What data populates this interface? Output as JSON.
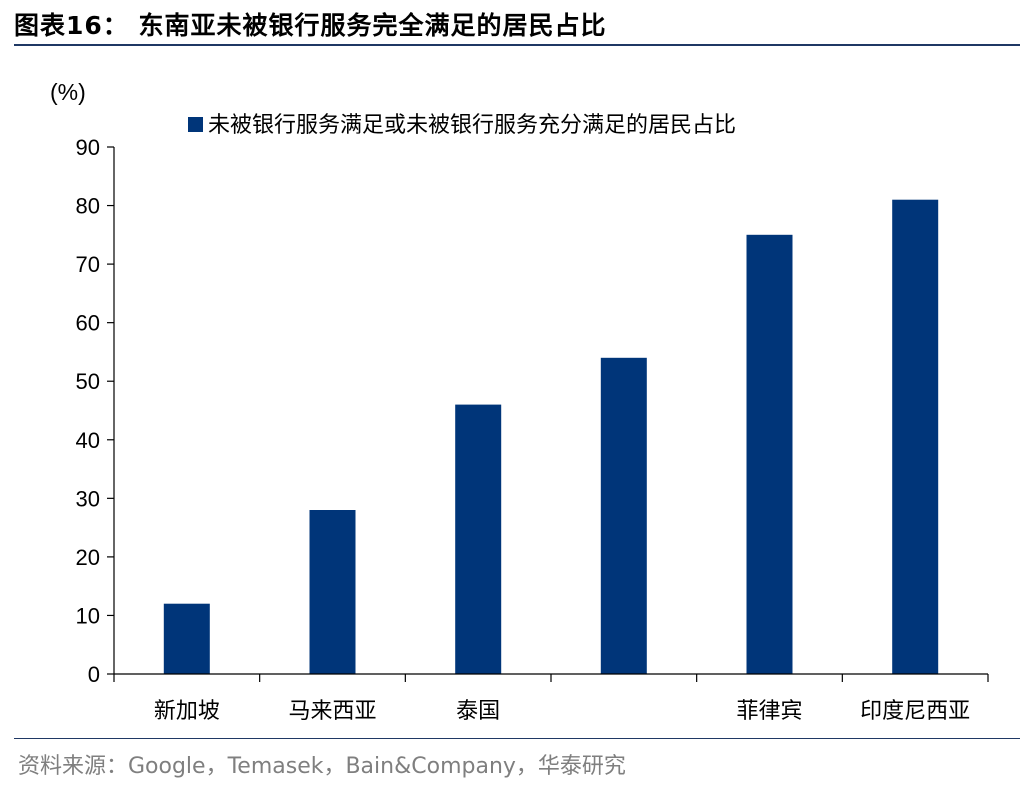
{
  "title": "图表16：  东南亚未被银行服务完全满足的居民占比",
  "source": "资料来源：Google，Temasek，Bain&Company，华泰研究",
  "colors": {
    "bar": "#003579",
    "rule": "#1f3864",
    "source": "#7f7f7f"
  },
  "chart_data": {
    "type": "bar",
    "unit_label": "(%)",
    "categories": [
      "新加坡",
      "马来西亚",
      "泰国",
      "",
      "菲律宾",
      "印度尼西亚"
    ],
    "series": [
      {
        "name": "未被银行服务满足或未被银行服务充分满足的居民占比",
        "values": [
          12,
          28,
          46,
          54,
          75,
          81
        ]
      }
    ],
    "ylim": [
      0,
      90
    ],
    "yticks": [
      0,
      10,
      20,
      30,
      40,
      50,
      60,
      70,
      80,
      90
    ],
    "grid": false,
    "legend_position": "top"
  }
}
